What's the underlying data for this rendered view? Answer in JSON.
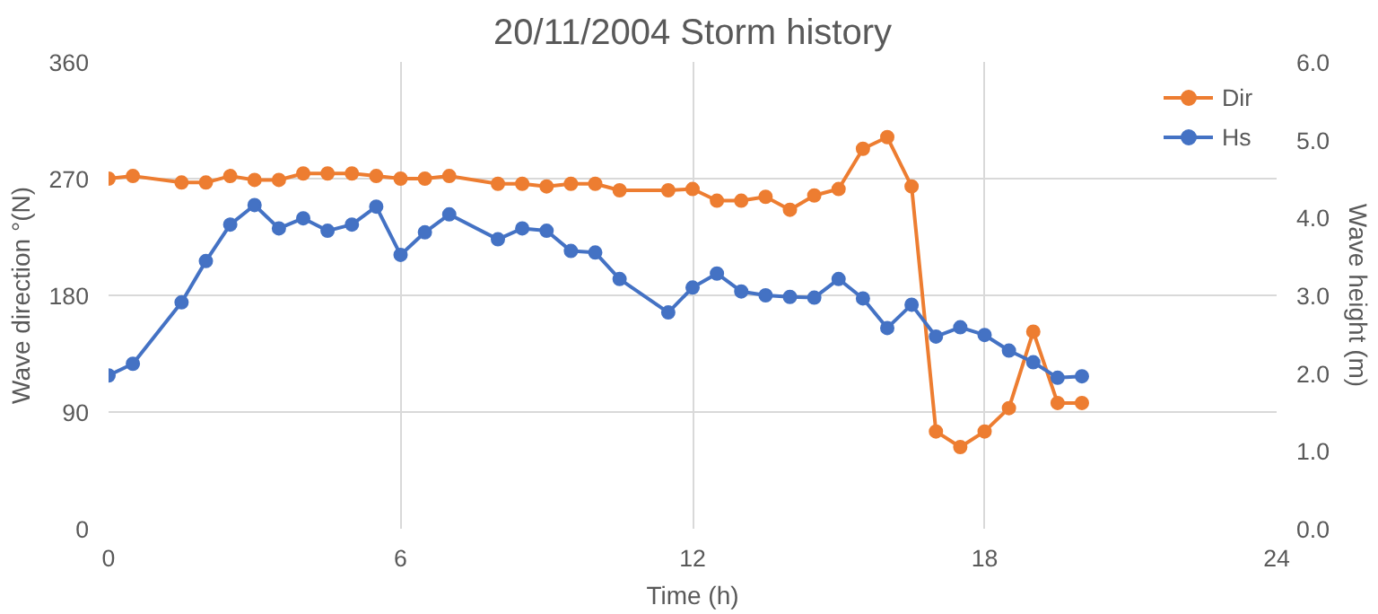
{
  "chart_data": {
    "type": "line",
    "title": "20/11/2004 Storm history",
    "xlabel": "Time (h)",
    "ylabel": "Wave direction °(N)",
    "y2label": "Wave height (m)",
    "x": [
      0,
      0.5,
      1.5,
      2,
      2.5,
      3,
      3.5,
      4,
      4.5,
      5,
      5.5,
      6,
      6.5,
      7,
      8,
      8.5,
      9,
      9.5,
      10,
      10.5,
      11.5,
      12,
      12.5,
      13,
      13.5,
      14,
      14.5,
      15,
      15.5,
      16,
      16.5,
      17,
      17.5,
      18,
      18.5,
      19,
      19.5,
      20
    ],
    "series": [
      {
        "name": "Dir",
        "color": "#ed7d31",
        "values": [
          270,
          272,
          267,
          267,
          272,
          269,
          269,
          274,
          274,
          274,
          272,
          270,
          270,
          272,
          266,
          266,
          264,
          266,
          266,
          261,
          261,
          262,
          253,
          253,
          256,
          246,
          257,
          262,
          293,
          302,
          264,
          75,
          63,
          75,
          93,
          152,
          97,
          97
        ]
      },
      {
        "name": "Hs",
        "color": "#4472c4",
        "axis": "y2",
        "values": [
          1.97,
          2.12,
          2.91,
          3.44,
          3.91,
          4.16,
          3.86,
          3.99,
          3.83,
          3.91,
          4.14,
          3.52,
          3.81,
          4.04,
          3.72,
          3.86,
          3.83,
          3.57,
          3.55,
          3.21,
          2.78,
          3.1,
          3.28,
          3.05,
          3.0,
          2.98,
          2.97,
          3.21,
          2.96,
          2.58,
          2.88,
          2.47,
          2.59,
          2.49,
          2.29,
          2.14,
          1.94,
          1.96
        ]
      }
    ],
    "xlim": [
      0,
      24
    ],
    "xticks": [
      0,
      6,
      12,
      18,
      24
    ],
    "ylim": [
      0,
      360
    ],
    "yticks": [
      0,
      90,
      180,
      270,
      360
    ],
    "y2lim": [
      0,
      6
    ],
    "y2ticks": [
      {
        "value": 0,
        "label": "0.0"
      },
      {
        "value": 1,
        "label": "1.0"
      },
      {
        "value": 2,
        "label": "2.0"
      },
      {
        "value": 3,
        "label": "3.0"
      },
      {
        "value": 4,
        "label": "4.0"
      },
      {
        "value": 5,
        "label": "5.0"
      },
      {
        "value": 6,
        "label": "6.0"
      }
    ],
    "grid": true,
    "legend": "top right",
    "marker": "circle",
    "line_style": "solid"
  }
}
